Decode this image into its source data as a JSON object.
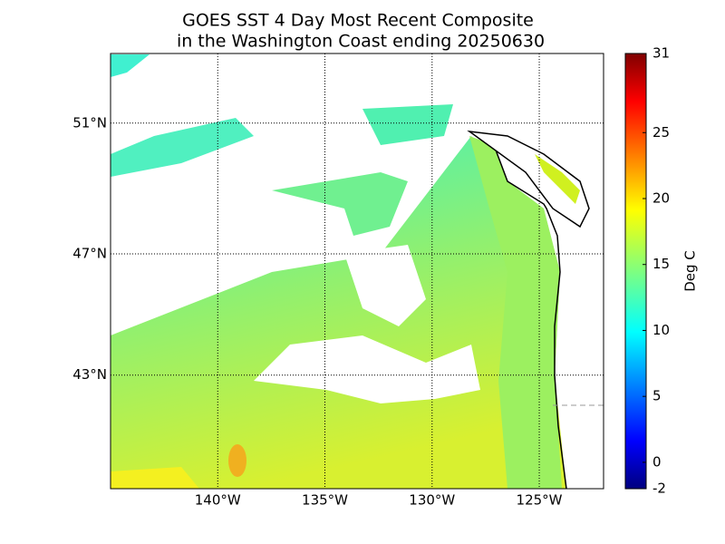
{
  "chart_data": {
    "type": "map",
    "title": [
      "GOES SST 4 Day Most Recent Composite",
      "in the Washington Coast ending 20250630"
    ],
    "xlim": [
      -145,
      -122
    ],
    "ylim": [
      39,
      53
    ],
    "xticks": [
      {
        "value": -140,
        "label": "140°W"
      },
      {
        "value": -135,
        "label": "135°W"
      },
      {
        "value": -130,
        "label": "130°W"
      },
      {
        "value": -125,
        "label": "125°W"
      }
    ],
    "yticks": [
      {
        "value": 43,
        "label": "43°N"
      },
      {
        "value": 47,
        "label": "47°N"
      },
      {
        "value": 51,
        "label": "51°N"
      }
    ],
    "grid": true,
    "colorbar": {
      "label": "Deg C",
      "lim": [
        -2,
        31
      ],
      "ticks": [
        -2,
        0,
        5,
        10,
        15,
        20,
        25,
        31
      ],
      "colormap": "jet"
    }
  }
}
